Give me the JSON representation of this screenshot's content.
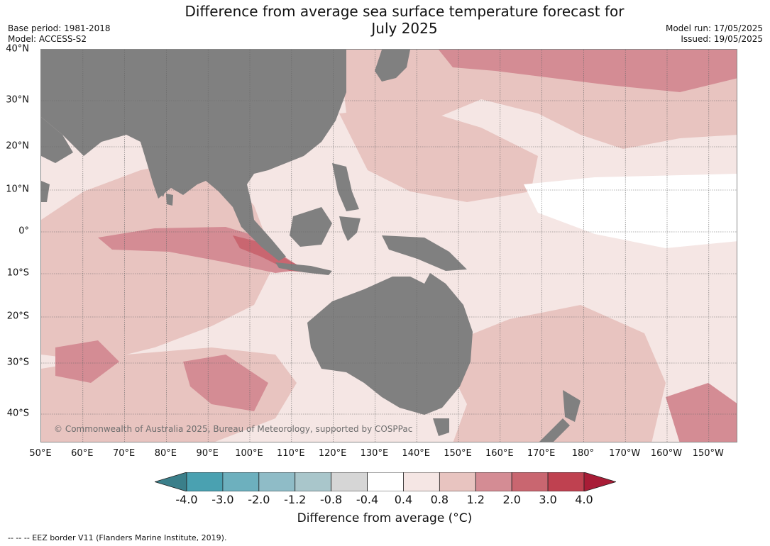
{
  "title_line1": "Difference from average sea surface temperature forecast for",
  "title_line2": "July 2025",
  "base_period": "Base period: 1981-2018",
  "model": "Model: ACCESS-S2",
  "model_run": "Model run: 17/05/2025",
  "issued": "Issued: 19/05/2025",
  "lat_labels": [
    "40°N",
    "30°N",
    "20°N",
    "10°N",
    "0°",
    "10°S",
    "20°S",
    "30°S",
    "40°S"
  ],
  "lon_labels": [
    "50°E",
    "60°E",
    "70°E",
    "80°E",
    "90°E",
    "100°E",
    "110°E",
    "120°E",
    "130°E",
    "140°E",
    "150°E",
    "160°E",
    "170°E",
    "180°",
    "170°W",
    "160°W",
    "150°W"
  ],
  "copyright": "© Commonwealth of Australia 2025, Bureau of Meteorology, supported by COSPPac",
  "colorbar": {
    "title": "Difference from average (°C)",
    "tick_labels": [
      "-4.0",
      "-3.0",
      "-2.0",
      "-1.2",
      "-0.8",
      "-0.4",
      "0.4",
      "0.8",
      "1.2",
      "2.0",
      "3.0",
      "4.0"
    ],
    "colors": [
      "#3a7f8a",
      "#4aa1b1",
      "#6db0be",
      "#8fbcc7",
      "#a9c6cb",
      "#d6d6d6",
      "#ffffff",
      "#f5e6e4",
      "#e8c4c0",
      "#d48c94",
      "#c96670",
      "#bf4150",
      "#a81c36"
    ]
  },
  "footer": "--  --  -- EEZ border V11 (Flanders Marine Institute, 2019).",
  "colors": {
    "land": "#808080",
    "anom_0_4": "#f5e6e4",
    "anom_0_8": "#e8c4c0",
    "anom_1_2": "#d48c94",
    "anom_2_0": "#c96670",
    "neutral": "#ffffff"
  }
}
